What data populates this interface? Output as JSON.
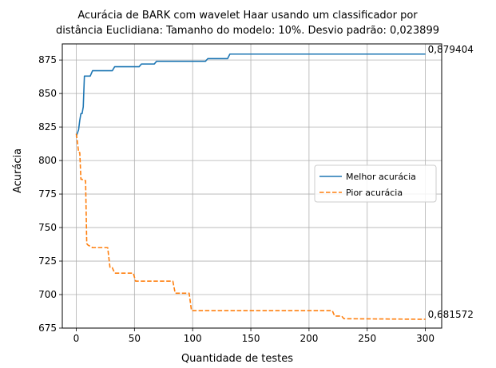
{
  "chart_data": {
    "type": "line",
    "title_line1": "Acurácia de BARK com wavelet Haar usando um classificador por",
    "title_line2": "distância Euclidiana: Tamanho do modelo: 10%. Desvio padrão: 0,023899",
    "xlabel": "Quantidade de testes",
    "ylabel": "Acurácia",
    "xlim": [
      -12,
      314
    ],
    "ylim": [
      675,
      887
    ],
    "x_ticks": [
      0,
      50,
      100,
      150,
      200,
      250,
      300
    ],
    "y_ticks": [
      675,
      700,
      725,
      750,
      775,
      800,
      825,
      850,
      875
    ],
    "grid": true,
    "legend_position": "center-right",
    "series": [
      {
        "name": "Melhor acurácia",
        "color": "#1f77b4",
        "style": "solid",
        "points": [
          [
            0,
            818
          ],
          [
            2,
            823
          ],
          [
            3,
            830
          ],
          [
            4,
            835
          ],
          [
            5,
            835
          ],
          [
            6,
            840
          ],
          [
            7,
            863
          ],
          [
            12,
            863
          ],
          [
            14,
            867
          ],
          [
            31,
            867
          ],
          [
            33,
            870
          ],
          [
            54,
            870
          ],
          [
            56,
            872
          ],
          [
            67,
            872
          ],
          [
            69,
            874
          ],
          [
            111,
            874
          ],
          [
            113,
            876
          ],
          [
            130,
            876
          ],
          [
            132,
            879.4
          ],
          [
            300,
            879.4
          ]
        ]
      },
      {
        "name": "Pior acurácia",
        "color": "#ff7f0e",
        "style": "dashed",
        "points": [
          [
            0,
            820
          ],
          [
            1,
            814
          ],
          [
            2,
            806
          ],
          [
            3,
            806
          ],
          [
            4,
            786
          ],
          [
            5,
            786
          ],
          [
            6,
            785
          ],
          [
            8,
            785
          ],
          [
            9,
            738
          ],
          [
            10,
            737
          ],
          [
            14,
            735
          ],
          [
            27,
            735
          ],
          [
            29,
            720
          ],
          [
            31,
            720
          ],
          [
            33,
            716
          ],
          [
            49,
            716
          ],
          [
            51,
            710
          ],
          [
            83,
            710
          ],
          [
            85,
            701
          ],
          [
            97,
            701
          ],
          [
            99,
            688
          ],
          [
            220,
            688
          ],
          [
            222,
            684
          ],
          [
            228,
            684
          ],
          [
            230,
            682
          ],
          [
            300,
            681.572
          ]
        ]
      }
    ],
    "annotations": [
      {
        "x": 300,
        "y": 879.4,
        "text": "0,879404"
      },
      {
        "x": 300,
        "y": 681.572,
        "text": "0,681572"
      }
    ]
  }
}
